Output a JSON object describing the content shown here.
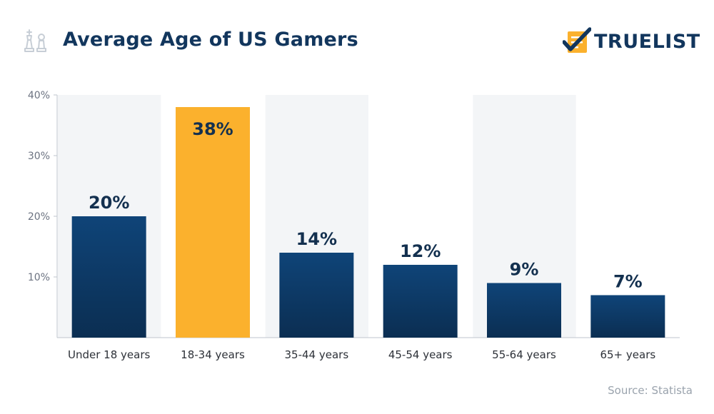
{
  "header": {
    "title": "Average Age of US Gamers",
    "brand": "TRUELIST",
    "title_icon": "chess-pieces-icon",
    "brand_icon": "checklist-logo-icon"
  },
  "source": "Source: Statista",
  "colors": {
    "title": "#12365d",
    "bar": "#0f4478",
    "bar_dark": "#0b2e52",
    "highlight": "#fbb12d",
    "band": "#f3f5f7",
    "axis_text": "#6b7280",
    "label": "#13304f"
  },
  "chart_data": {
    "type": "bar",
    "title": "Average Age of US Gamers",
    "categories": [
      "Under 18 years",
      "18-34 years",
      "35-44 years",
      "45-54 years",
      "55-64 years",
      "65+ years"
    ],
    "values": [
      20,
      38,
      14,
      12,
      9,
      7
    ],
    "data_labels": [
      "20%",
      "38%",
      "14%",
      "12%",
      "9%",
      "7%"
    ],
    "highlight_index": 1,
    "ylim": [
      0,
      40
    ],
    "yticks": [
      10,
      20,
      30,
      40
    ],
    "ytick_labels": [
      "10%",
      "20%",
      "30%",
      "40%"
    ],
    "xlabel": "",
    "ylabel": "",
    "grid": false,
    "legend": "none"
  }
}
